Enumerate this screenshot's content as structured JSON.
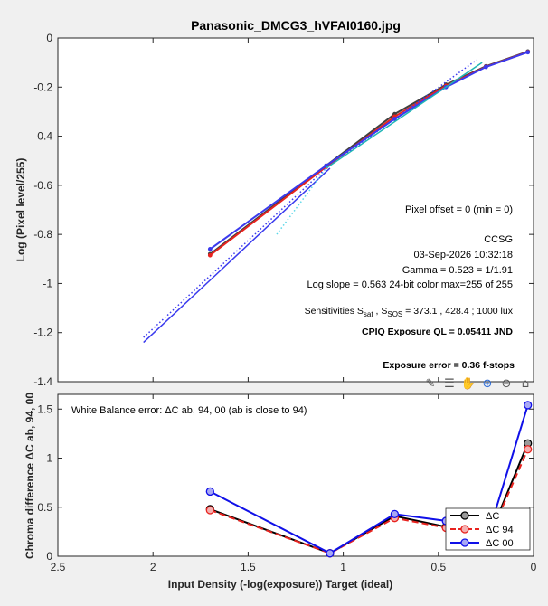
{
  "chart_data": [
    {
      "type": "line",
      "title": "Panasonic_DMCG3_hVFAI0160.jpg",
      "xlabel": "",
      "ylabel": "Log (Pixel level/255)",
      "xlim": [
        2.5,
        0
      ],
      "ylim": [
        -1.4,
        0
      ],
      "xticks": [
        2.5,
        2,
        1.5,
        1,
        0.5,
        0
      ],
      "yticks": [
        0,
        -0.2,
        -0.4,
        -0.6,
        -0.8,
        -1,
        -1.2,
        -1.4
      ],
      "ytick_labels": [
        "0",
        "-0.2",
        "-0.4",
        "-0.6",
        "-0.8",
        "-1",
        "-1.2",
        "-1.4"
      ],
      "xtick_labels": [],
      "grid": false,
      "series": [
        {
          "color": "#404040",
          "style": "solid",
          "marker": "dot",
          "x": [
            1.7,
            1.09,
            0.73,
            0.46,
            0.25,
            0.03
          ],
          "y": [
            -0.88,
            -0.52,
            -0.31,
            -0.19,
            -0.115,
            -0.055
          ]
        },
        {
          "color": "#e8231f",
          "style": "solid",
          "marker": "dot",
          "x": [
            1.7,
            1.09,
            0.73,
            0.46,
            0.25,
            0.03
          ],
          "y": [
            -0.885,
            -0.525,
            -0.32,
            -0.195,
            -0.117,
            -0.057
          ]
        },
        {
          "color": "#3a3aee",
          "style": "solid",
          "marker": "dot",
          "x": [
            1.7,
            1.09,
            0.73,
            0.46,
            0.25,
            0.03
          ],
          "y": [
            -0.86,
            -0.52,
            -0.33,
            -0.2,
            -0.118,
            -0.058
          ]
        },
        {
          "color": "#3a3aee",
          "style": "solid",
          "marker": "none",
          "x": [
            2.05,
            1.07
          ],
          "y": [
            -1.24,
            -0.53
          ]
        },
        {
          "color": "#3a3aee",
          "style": "dotted",
          "marker": "none",
          "x": [
            2.05,
            1.09,
            0.3
          ],
          "y": [
            -1.22,
            -0.53,
            -0.09
          ]
        },
        {
          "color": "#1fb5b5",
          "style": "solid",
          "marker": "none",
          "x": [
            1.09,
            0.27
          ],
          "y": [
            -0.53,
            -0.1
          ]
        },
        {
          "color": "#5ad7e8",
          "style": "dotted",
          "marker": "none",
          "x": [
            1.35,
            1.09
          ],
          "y": [
            -0.8,
            -0.53
          ]
        }
      ],
      "annotations": [
        {
          "id": "pixel_offset",
          "text": "Pixel offset = 0  (min = 0)"
        },
        {
          "id": "ccsg",
          "text": "CCSG"
        },
        {
          "id": "date",
          "text": "03-Sep-2026 10:32:18"
        },
        {
          "id": "gamma",
          "text": "Gamma = 0.523 = 1/1.91"
        },
        {
          "id": "log_slope",
          "text": "Log slope = 0.563   24-bit color  max=255 of 255"
        },
        {
          "id": "sens_prefix",
          "text": "Sensitivities S"
        },
        {
          "id": "sens_sub1",
          "text": "sat"
        },
        {
          "id": "sens_mid",
          "text": " , S"
        },
        {
          "id": "sens_sub2",
          "text": "SOS"
        },
        {
          "id": "sens_values",
          "text": " = 373.1 ,  428.4 ;  1000 lux"
        },
        {
          "id": "cpiq",
          "text": "CPIQ Exposure QL = 0.05411 JND"
        },
        {
          "id": "exposure_error",
          "text": "Exposure error = 0.36 f-stops",
          "color": "#cc0000"
        }
      ]
    },
    {
      "type": "line",
      "title": "",
      "xlabel": "Input Density (-log(exposure))   Target (ideal)",
      "ylabel": "Chroma difference ΔC ab, 94, 00",
      "xlim": [
        2.5,
        0
      ],
      "ylim": [
        0,
        1.65
      ],
      "xticks": [
        2.5,
        2,
        1.5,
        1,
        0.5,
        0
      ],
      "xtick_labels": [
        "2.5",
        "2",
        "1.5",
        "1",
        "0.5",
        "0"
      ],
      "yticks": [
        0,
        0.5,
        1,
        1.5
      ],
      "ytick_labels": [
        "0",
        "0.5",
        "1",
        "1.5"
      ],
      "grid": false,
      "legend": "bottom-right",
      "annotation": "White Balance error: ΔC ab, 94, 00 (ab is close to 94)",
      "series": [
        {
          "name": "ΔC",
          "color": "#000000",
          "marker_fill": "#9a9a9a",
          "style": "solid",
          "x": [
            1.7,
            1.07,
            0.73,
            0.46,
            0.25,
            0.03
          ],
          "y": [
            0.48,
            0.03,
            0.41,
            0.3,
            0.12,
            1.15
          ]
        },
        {
          "name": "ΔC 94",
          "color": "#e8231f",
          "marker_fill": "#f4b0b0",
          "style": "dashed",
          "x": [
            1.7,
            1.07,
            0.73,
            0.46,
            0.25,
            0.03
          ],
          "y": [
            0.47,
            0.03,
            0.39,
            0.29,
            0.12,
            1.09
          ]
        },
        {
          "name": "ΔC 00",
          "color": "#1010e8",
          "marker_fill": "#a8a8f4",
          "style": "solid",
          "x": [
            1.7,
            1.07,
            0.73,
            0.46,
            0.25,
            0.03
          ],
          "y": [
            0.66,
            0.03,
            0.43,
            0.36,
            0.15,
            1.54
          ]
        }
      ]
    }
  ],
  "toolbar": {
    "icons": [
      "edit-icon",
      "insert-legend-icon",
      "pan-hand-icon",
      "zoom-in-icon",
      "zoom-out-icon",
      "home-icon"
    ]
  }
}
